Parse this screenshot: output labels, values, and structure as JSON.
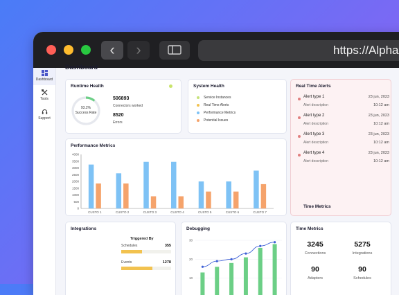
{
  "browser": {
    "url": "https://AlphaA"
  },
  "sidebar": {
    "items": [
      {
        "label": "Dashboard",
        "icon": "dashboard-icon"
      },
      {
        "label": "Tools",
        "icon": "tools-icon"
      },
      {
        "label": "Support",
        "icon": "headset-icon"
      }
    ]
  },
  "page": {
    "title": "Dashboard"
  },
  "runtime": {
    "title": "Runtime Health",
    "percent": "93.2%",
    "percent_value": 93.2,
    "gauge_label": "Success Rate",
    "connectors_value": "506893",
    "connectors_label": "Connectors worked",
    "errors_value": "8520",
    "errors_label": "Errors",
    "status_color": "#c9e46b"
  },
  "system": {
    "title": "System Health",
    "items": [
      {
        "label": "Service Instances",
        "color": "#c6e27a"
      },
      {
        "label": "Real Time Alerts",
        "color": "#f2c24f"
      },
      {
        "label": "Performance Metrics",
        "color": "#7ec2f5"
      },
      {
        "label": "Potential Issues",
        "color": "#f5a36b"
      }
    ]
  },
  "alerts": {
    "title": "Real Time Alerts",
    "footer": "Time Metrics",
    "items": [
      {
        "type": "Alert type 1",
        "desc": "Alert description",
        "date": "23 jun, 2023",
        "time": "10:12 am"
      },
      {
        "type": "Alert type 2",
        "desc": "Alert description",
        "date": "23 jun, 2023",
        "time": "10:12 am"
      },
      {
        "type": "Alert type 3",
        "desc": "Alert description",
        "date": "23 jun, 2023",
        "time": "10:12 am"
      },
      {
        "type": "Alert type 4",
        "desc": "Alert description",
        "date": "23 jun, 2023",
        "time": "10:12 am"
      }
    ]
  },
  "integrations": {
    "title": "Integrations",
    "triggered_label": "Triggered By",
    "rows": [
      {
        "label": "Schedules",
        "value": "355",
        "fill": 0.42
      },
      {
        "label": "Events",
        "value": "1278",
        "fill": 0.62
      }
    ]
  },
  "debugging": {
    "title": "Debugging"
  },
  "time_metrics": {
    "title": "Time Metrics",
    "items": [
      {
        "value": "3245",
        "label": "Connections"
      },
      {
        "value": "5275",
        "label": "Integrations"
      },
      {
        "value": "90",
        "label": "Adapters"
      },
      {
        "value": "90",
        "label": "Schedules"
      }
    ]
  },
  "chart_data": [
    {
      "type": "bar",
      "title": "Performance Metrics",
      "categories": [
        "CUSTO 1",
        "CUSTO 2",
        "CUSTO 3",
        "CUSTO 4",
        "CUSTO 5",
        "CUSTO 6",
        "CUSTO 7"
      ],
      "ylim": [
        0,
        4000
      ],
      "yticks": [
        0,
        500,
        1000,
        1500,
        2000,
        2500,
        3000,
        3500,
        4000
      ],
      "colors": [
        "#7ec2f5",
        "#f5a36b"
      ],
      "series": [
        {
          "values": [
            3250,
            2600,
            3450,
            3450,
            2000,
            2000,
            2800
          ]
        },
        {
          "values": [
            1850,
            1850,
            900,
            900,
            1250,
            1250,
            1800
          ]
        }
      ]
    },
    {
      "type": "bar",
      "title": "Debugging",
      "ylim": [
        0,
        30
      ],
      "yticks": [
        0,
        10,
        20,
        30
      ],
      "colors": [
        "#6ccf86",
        "#3d5fd6"
      ],
      "series": [
        {
          "values": [
            13,
            16,
            18,
            21,
            26,
            28
          ]
        },
        {
          "values": [
            16,
            19,
            20,
            23,
            27,
            29
          ]
        }
      ]
    }
  ]
}
